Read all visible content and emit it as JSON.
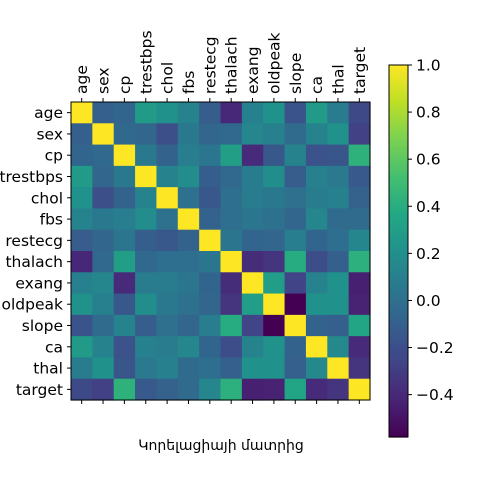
{
  "chart_data": {
    "type": "heatmap",
    "xlabel": "Կորելացիայի մատրից",
    "ylabel": "",
    "labels": [
      "age",
      "sex",
      "cp",
      "trestbps",
      "chol",
      "fbs",
      "restecg",
      "thalach",
      "exang",
      "oldpeak",
      "slope",
      "ca",
      "thal",
      "target"
    ],
    "matrix": [
      [
        1.0,
        -0.1,
        -0.07,
        0.28,
        0.21,
        0.12,
        -0.12,
        -0.4,
        0.1,
        0.21,
        -0.17,
        0.28,
        0.07,
        -0.23
      ],
      [
        -0.1,
        1.0,
        -0.05,
        -0.06,
        -0.2,
        0.05,
        -0.06,
        -0.04,
        0.14,
        0.1,
        -0.03,
        0.12,
        0.21,
        -0.28
      ],
      [
        -0.07,
        -0.05,
        1.0,
        0.05,
        -0.08,
        0.09,
        0.04,
        0.3,
        -0.39,
        -0.15,
        0.12,
        -0.18,
        -0.16,
        0.43
      ],
      [
        0.28,
        -0.06,
        0.05,
        1.0,
        0.12,
        0.18,
        -0.11,
        -0.05,
        0.07,
        0.19,
        -0.12,
        0.1,
        0.06,
        -0.14
      ],
      [
        0.21,
        -0.2,
        -0.08,
        0.12,
        1.0,
        0.01,
        -0.15,
        -0.01,
        0.07,
        0.05,
        0.0,
        0.07,
        0.1,
        -0.09
      ],
      [
        0.12,
        0.05,
        0.09,
        0.18,
        0.01,
        1.0,
        -0.08,
        -0.01,
        0.03,
        0.01,
        -0.06,
        0.14,
        -0.03,
        -0.03
      ],
      [
        -0.12,
        -0.06,
        0.04,
        -0.11,
        -0.15,
        -0.08,
        1.0,
        0.04,
        -0.07,
        -0.06,
        0.09,
        -0.07,
        -0.01,
        0.14
      ],
      [
        -0.4,
        -0.04,
        0.3,
        -0.05,
        -0.01,
        -0.01,
        0.04,
        1.0,
        -0.38,
        -0.34,
        0.39,
        -0.21,
        -0.1,
        0.42
      ],
      [
        0.1,
        0.14,
        -0.39,
        0.07,
        0.07,
        0.03,
        -0.07,
        -0.38,
        1.0,
        0.29,
        -0.26,
        0.12,
        0.21,
        -0.44
      ],
      [
        0.21,
        0.1,
        -0.15,
        0.19,
        0.05,
        0.01,
        -0.06,
        -0.34,
        0.29,
        1.0,
        -0.58,
        0.22,
        0.21,
        -0.43
      ],
      [
        -0.17,
        -0.03,
        0.12,
        -0.12,
        0.0,
        -0.06,
        0.09,
        0.39,
        -0.26,
        -0.58,
        1.0,
        -0.08,
        -0.1,
        0.35
      ],
      [
        0.28,
        0.12,
        -0.18,
        0.1,
        0.07,
        0.14,
        -0.07,
        -0.21,
        0.12,
        0.22,
        -0.08,
        1.0,
        0.15,
        -0.39
      ],
      [
        0.07,
        0.21,
        -0.16,
        0.06,
        0.1,
        -0.03,
        -0.01,
        -0.1,
        0.21,
        0.21,
        -0.1,
        0.15,
        1.0,
        -0.34
      ],
      [
        -0.23,
        -0.28,
        0.43,
        -0.14,
        -0.09,
        -0.03,
        0.14,
        0.42,
        -0.44,
        -0.43,
        0.35,
        -0.39,
        -0.34,
        1.0
      ]
    ],
    "colormap": "viridis",
    "colorbar": {
      "range": [
        -0.58,
        1.0
      ],
      "ticks": [
        -0.4,
        -0.2,
        0.0,
        0.2,
        0.4,
        0.6,
        0.8,
        1.0
      ],
      "tick_labels": [
        "−0.4",
        "−0.2",
        "0.0",
        "0.2",
        "0.4",
        "0.6",
        "0.8",
        "1.0"
      ]
    },
    "x_tick_position": "top",
    "grid": false
  }
}
